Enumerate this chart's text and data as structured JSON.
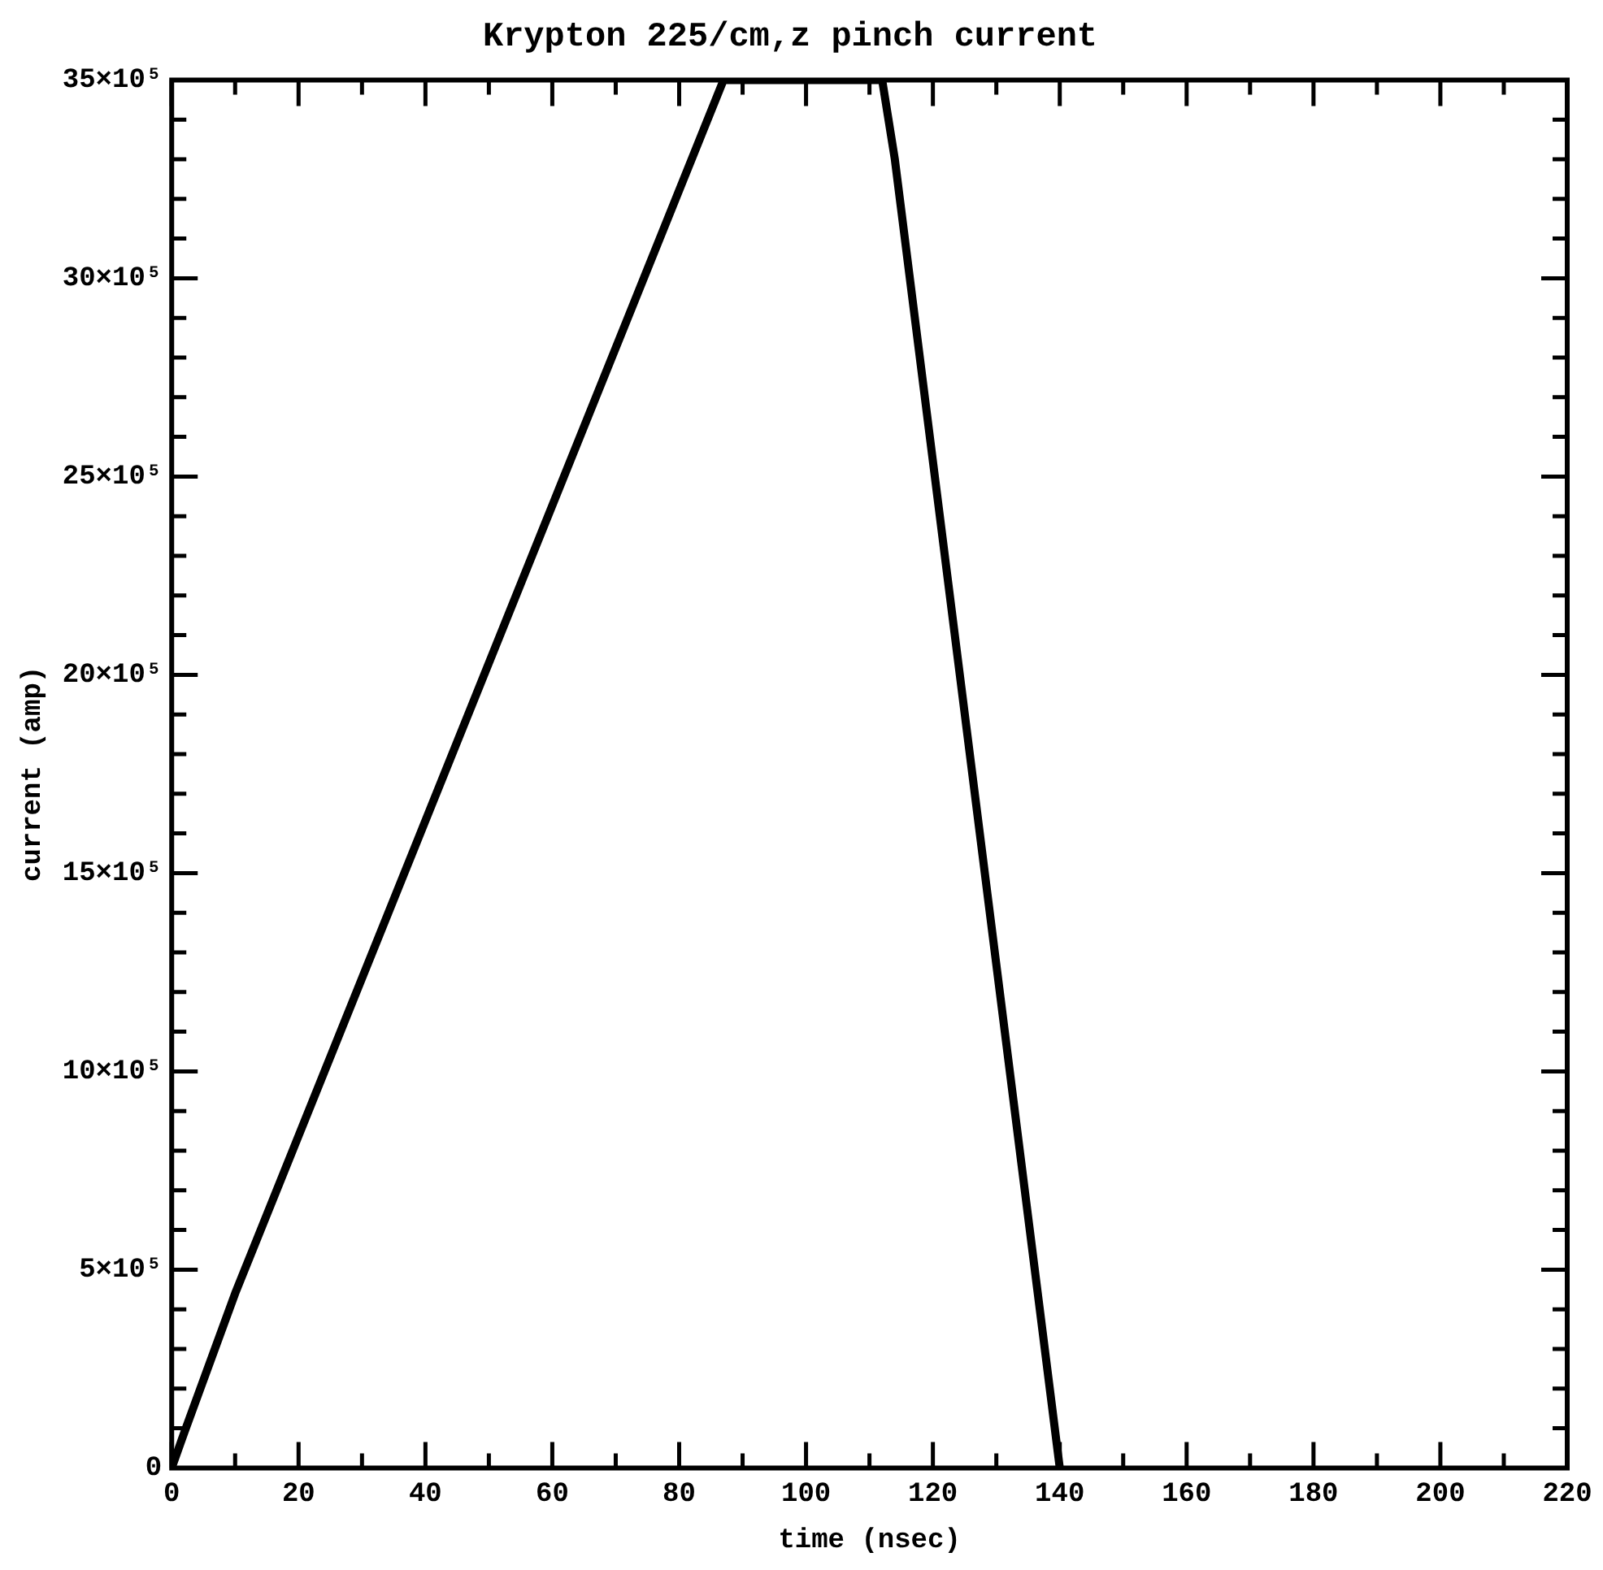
{
  "chart_data": {
    "type": "line",
    "title": "Krypton 225/cm,z pinch current",
    "xlabel": "time (nsec)",
    "ylabel": "current (amp)",
    "x": [
      0,
      2,
      10,
      87,
      112,
      114,
      140
    ],
    "series": [
      {
        "color": "#000000",
        "values": [
          0,
          90000,
          440000,
          3500000,
          3500000,
          3300000,
          0
        ]
      }
    ],
    "xlim": [
      0,
      220
    ],
    "ylim": [
      0,
      3500000
    ],
    "xticks": [
      0,
      {
        "value": 10,
        "label": null
      },
      20,
      {
        "value": 30,
        "label": null
      },
      40,
      {
        "value": 50,
        "label": null
      },
      60,
      {
        "value": 70,
        "label": null
      },
      80,
      {
        "value": 90,
        "label": null
      },
      100,
      {
        "value": 110,
        "label": null
      },
      120,
      {
        "value": 130,
        "label": null
      },
      140,
      {
        "value": 150,
        "label": null
      },
      160,
      {
        "value": 170,
        "label": null
      },
      180,
      {
        "value": 190,
        "label": null
      },
      200,
      {
        "value": 210,
        "label": null
      },
      220
    ],
    "yticks": [
      0,
      {
        "value": 100000,
        "label": null
      },
      {
        "value": 200000,
        "label": null
      },
      {
        "value": 300000,
        "label": null
      },
      {
        "value": 400000,
        "label": null
      },
      {
        "value": 500000,
        "label": "5×10⁵"
      },
      {
        "value": 600000,
        "label": null
      },
      {
        "value": 700000,
        "label": null
      },
      {
        "value": 800000,
        "label": null
      },
      {
        "value": 900000,
        "label": null
      },
      {
        "value": 1000000,
        "label": "10×10⁵"
      },
      {
        "value": 1100000,
        "label": null
      },
      {
        "value": 1200000,
        "label": null
      },
      {
        "value": 1300000,
        "label": null
      },
      {
        "value": 1400000,
        "label": null
      },
      {
        "value": 1500000,
        "label": "15×10⁵"
      },
      {
        "value": 1600000,
        "label": null
      },
      {
        "value": 1700000,
        "label": null
      },
      {
        "value": 1800000,
        "label": null
      },
      {
        "value": 1900000,
        "label": null
      },
      {
        "value": 2000000,
        "label": "20×10⁵"
      },
      {
        "value": 2100000,
        "label": null
      },
      {
        "value": 2200000,
        "label": null
      },
      {
        "value": 2300000,
        "label": null
      },
      {
        "value": 2400000,
        "label": null
      },
      {
        "value": 2500000,
        "label": "25×10⁵"
      },
      {
        "value": 2600000,
        "label": null
      },
      {
        "value": 2700000,
        "label": null
      },
      {
        "value": 2800000,
        "label": null
      },
      {
        "value": 2900000,
        "label": null
      },
      {
        "value": 3000000,
        "label": "30×10⁵"
      },
      {
        "value": 3100000,
        "label": null
      },
      {
        "value": 3200000,
        "label": null
      },
      {
        "value": 3300000,
        "label": null
      },
      {
        "value": 3400000,
        "label": null
      },
      {
        "value": 3500000,
        "label": "35×10⁵"
      }
    ],
    "grid": false,
    "legend": false,
    "marker": "none",
    "line_style": "solid"
  }
}
